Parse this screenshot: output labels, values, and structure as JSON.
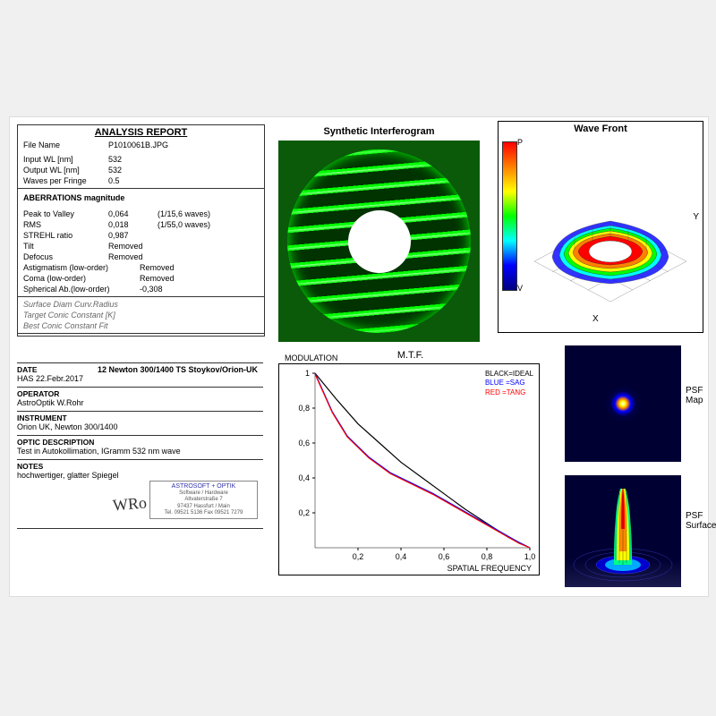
{
  "report": {
    "title": "ANALYSIS  REPORT",
    "file_label": "File Name",
    "file_value": "P1010061B.JPG",
    "input_wl_label": "Input  WL [nm]",
    "input_wl": "532",
    "output_wl_label": "Output WL [nm]",
    "output_wl": "532",
    "wpf_label": "Waves per Fringe",
    "wpf": "0.5",
    "ab_head": "ABERRATIONS magnitude",
    "pv_label": "Peak to Valley",
    "pv_v": "0,064",
    "pv_w": "(1/15,6 waves)",
    "rms_label": "RMS",
    "rms_v": "0,018",
    "rms_w": "(1/55,0 waves)",
    "strehl_label": "STREHL ratio",
    "strehl_v": "0,987",
    "tilt_label": "Tilt",
    "tilt_v": "Removed",
    "defocus_label": "Defocus",
    "defocus_v": "Removed",
    "astig_label": "Astigmatism  (low-order)",
    "astig_v": "Removed",
    "coma_label": "Coma           (low-order)",
    "coma_v": "Removed",
    "sph_label": "Spherical Ab.(low-order)",
    "sph_v": "-0,308",
    "it1": "Surface Diam                          Curv.Radius",
    "it2": "Target Conic Constant [K]",
    "it3": "Best Conic Constant Fit"
  },
  "lower": {
    "date_head": "DATE",
    "date_line": "HAS 22.Febr.2017",
    "title_line": "12 Newton  300/1400    TS Stoykov/Orion-UK",
    "op_head": "OPERATOR",
    "op_val": "AstroOptik  W.Rohr",
    "inst_head": "INSTRUMENT",
    "inst_val": "Orion UK, Newton 300/1400",
    "optic_head": "OPTIC DESCRIPTION",
    "optic_val": "Test in Autokollimation, IGramm 532 nm wave",
    "notes_head": "NOTES",
    "notes_val": "hochwertiger, glatter Spiegel",
    "sig": "WRo"
  },
  "stamp": {
    "t": "ASTROSOFT + OPTIK",
    "l1": "Software / Hardware",
    "l2": "Altvaterstraße 7",
    "l3": "97437 Hassfurt / Main",
    "l4": "Tel. 09521 5136 Fax 09521 7279"
  },
  "interferogram": {
    "title": "Synthetic Interferogram",
    "bg_color": "#0a5a0a",
    "fringe_dark": "#003300",
    "fringe_light": "#00ff00",
    "hole_ratio": 0.34
  },
  "wavefront": {
    "title": "Wave Front",
    "p_label": "P",
    "v_label": "V",
    "x_label": "X",
    "y_label": "Y",
    "colorbar": [
      "#ff0000",
      "#ff8000",
      "#ffff00",
      "#00ff00",
      "#00ffff",
      "#0000ff",
      "#000080"
    ]
  },
  "mtf": {
    "title": "M.T.F.",
    "ylabel": "MODULATION",
    "xlabel": "SPATIAL FREQUENCY",
    "legend_black": "BLACK=IDEAL",
    "legend_blue": "BLUE  =SAG",
    "legend_red": "RED   =TANG",
    "xticks": [
      "0,2",
      "0,4",
      "0,6",
      "0,8",
      "1,0"
    ],
    "yticks": [
      "1",
      "0,8",
      "0,6",
      "0,4",
      "0,2"
    ],
    "ideal": [
      [
        0,
        1.0
      ],
      [
        0.1,
        0.85
      ],
      [
        0.2,
        0.71
      ],
      [
        0.3,
        0.6
      ],
      [
        0.4,
        0.49
      ],
      [
        0.5,
        0.4
      ],
      [
        0.6,
        0.31
      ],
      [
        0.7,
        0.22
      ],
      [
        0.8,
        0.14
      ],
      [
        0.9,
        0.06
      ],
      [
        1.0,
        0.0
      ]
    ],
    "sagtang": [
      [
        0,
        1.0
      ],
      [
        0.08,
        0.78
      ],
      [
        0.15,
        0.64
      ],
      [
        0.25,
        0.52
      ],
      [
        0.35,
        0.43
      ],
      [
        0.45,
        0.37
      ],
      [
        0.55,
        0.31
      ],
      [
        0.65,
        0.24
      ],
      [
        0.75,
        0.17
      ],
      [
        0.85,
        0.1
      ],
      [
        0.95,
        0.03
      ],
      [
        1.0,
        0.0
      ]
    ],
    "color_ideal": "#000000",
    "color_sag": "#0000ff",
    "color_tang": "#ff0000",
    "xlim": [
      0,
      1.0
    ],
    "ylim": [
      0,
      1.0
    ]
  },
  "psf": {
    "map_label": "PSF Map",
    "surf_label": "PSF Surface",
    "bg": "#000033"
  }
}
